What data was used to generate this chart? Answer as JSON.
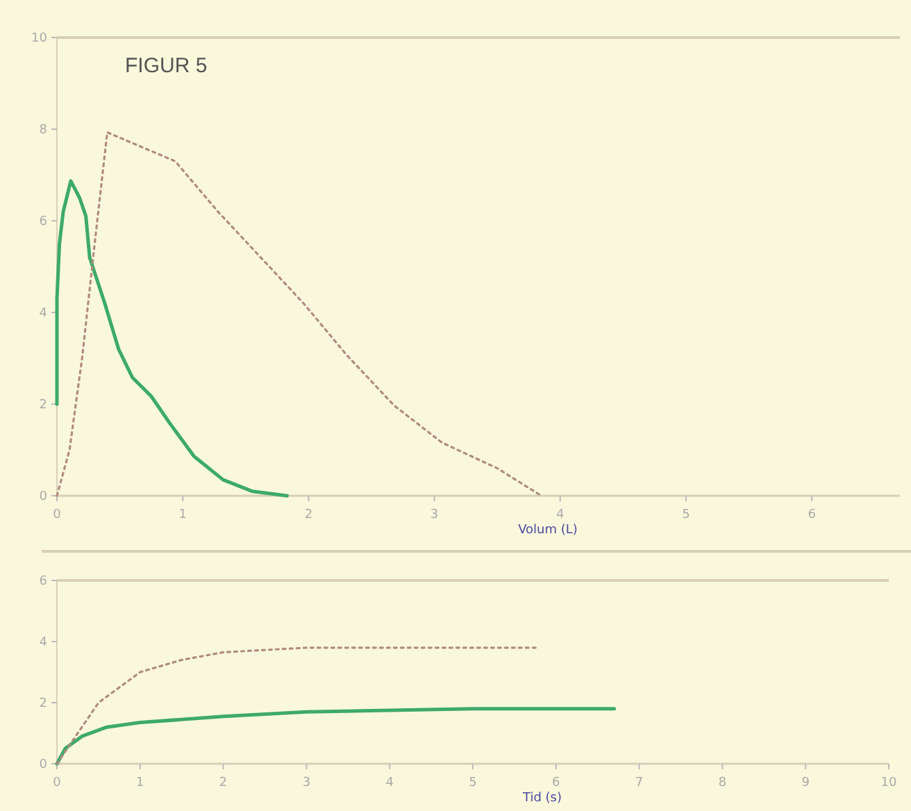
{
  "chart_data": [
    {
      "type": "line",
      "title": "FIGUR 5",
      "xlabel": "Volum (L)",
      "xlim": [
        0,
        6.7
      ],
      "xticks": [
        0,
        1,
        2,
        3,
        4,
        5,
        6
      ],
      "ylim": [
        0,
        10
      ],
      "yticks": [
        0,
        2,
        4,
        6,
        8,
        10
      ],
      "grid": false,
      "series": [
        {
          "color": "#3daa6a",
          "line_style": "solid",
          "x": [
            0,
            0,
            0.02,
            0.05,
            0.11,
            0.18,
            0.23,
            0.26,
            0.38,
            0.49,
            0.6,
            0.75,
            0.9,
            1.09,
            1.32,
            1.55,
            1.83
          ],
          "values": [
            2.0,
            4.3,
            5.5,
            6.2,
            6.87,
            6.5,
            6.1,
            5.2,
            4.2,
            3.2,
            2.58,
            2.17,
            1.57,
            0.86,
            0.35,
            0.1,
            0
          ]
        },
        {
          "color": "#b08c80",
          "line_style": "dotted",
          "x": [
            0,
            0.1,
            0.2,
            0.3,
            0.4,
            0.94,
            1.28,
            1.62,
            1.96,
            2.3,
            2.68,
            3.06,
            3.5,
            3.85
          ],
          "values": [
            0,
            1,
            3,
            5.5,
            7.93,
            7.3,
            6.2,
            5.2,
            4.2,
            3.08,
            1.97,
            1.16,
            0.6,
            0
          ]
        }
      ]
    },
    {
      "type": "line",
      "xlabel": "Tid (s)",
      "xlim": [
        0,
        10
      ],
      "xticks": [
        0,
        1,
        2,
        3,
        4,
        5,
        6,
        7,
        8,
        9,
        10
      ],
      "ylim": [
        0,
        6
      ],
      "yticks": [
        0,
        2,
        4,
        6
      ],
      "grid": false,
      "series": [
        {
          "color": "#3daa6a",
          "line_style": "solid",
          "x": [
            0,
            0.1,
            0.3,
            0.6,
            1,
            2,
            3,
            4,
            5,
            6.7
          ],
          "values": [
            0,
            0.5,
            0.9,
            1.2,
            1.35,
            1.55,
            1.7,
            1.75,
            1.8,
            1.8
          ]
        },
        {
          "color": "#b08c80",
          "line_style": "dotted",
          "x": [
            0,
            0.25,
            0.5,
            1,
            1.5,
            2,
            3,
            4,
            5,
            5.8
          ],
          "values": [
            0,
            1,
            2,
            3,
            3.4,
            3.65,
            3.8,
            3.8,
            3.8,
            3.8
          ]
        }
      ]
    }
  ]
}
